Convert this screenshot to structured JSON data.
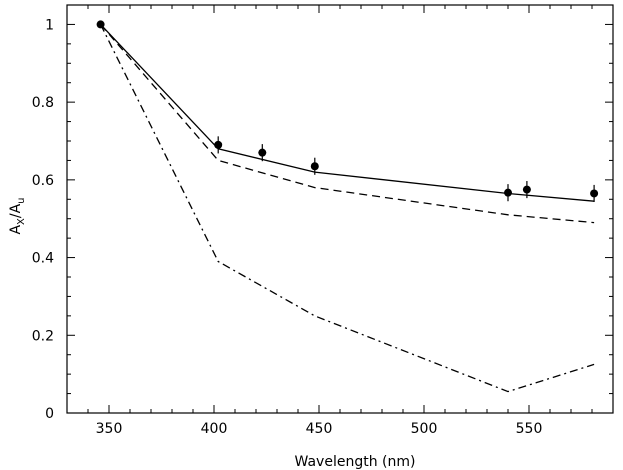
{
  "chart_data": {
    "type": "line",
    "xlabel": "Wavelength (nm)",
    "ylabel": {
      "main": "A",
      "sub1": "X",
      "slash": "/A",
      "sub2": "u"
    },
    "xlim": [
      330,
      590
    ],
    "ylim": [
      0,
      1.05
    ],
    "x_ticks": [
      350,
      400,
      450,
      500,
      550
    ],
    "y_ticks": [
      0,
      0.2,
      0.4,
      0.6,
      0.8,
      1
    ],
    "x_tick_labels": [
      "350",
      "400",
      "450",
      "500",
      "550"
    ],
    "y_tick_labels": [
      "0",
      "0.2",
      "0.4",
      "0.6",
      "0.8",
      "1"
    ],
    "grid": false,
    "legend": "none",
    "series": [
      {
        "style": "solid",
        "x": [
          346,
          402,
          448,
          540,
          581
        ],
        "y": [
          1.0,
          0.68,
          0.62,
          0.565,
          0.545
        ]
      },
      {
        "style": "dashed",
        "x": [
          346,
          402,
          448,
          540,
          581
        ],
        "y": [
          1.0,
          0.65,
          0.58,
          0.51,
          0.49
        ]
      },
      {
        "style": "dash-dot",
        "x": [
          346,
          402,
          448,
          540,
          581
        ],
        "y": [
          1.0,
          0.39,
          0.25,
          0.055,
          0.125
        ]
      }
    ],
    "points": {
      "x": [
        346,
        402,
        423,
        448,
        540,
        549,
        581
      ],
      "y": [
        1.0,
        0.69,
        0.67,
        0.635,
        0.567,
        0.575,
        0.565
      ],
      "err": [
        0.0,
        0.022,
        0.022,
        0.022,
        0.022,
        0.022,
        0.022
      ]
    }
  }
}
